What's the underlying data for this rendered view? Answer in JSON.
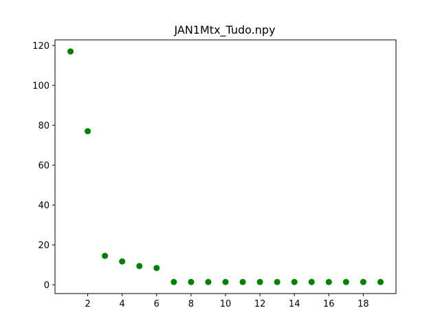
{
  "chart_data": {
    "type": "scatter",
    "title": "JAN1Mtx_Tudo.npy",
    "xlabel": "",
    "ylabel": "",
    "x": [
      1,
      2,
      3,
      4,
      5,
      6,
      7,
      8,
      9,
      10,
      11,
      12,
      13,
      14,
      15,
      16,
      17,
      18,
      19
    ],
    "y": [
      117,
      77,
      14.5,
      11.7,
      9.4,
      8.4,
      1.4,
      1.4,
      1.4,
      1.4,
      1.4,
      1.4,
      1.4,
      1.4,
      1.4,
      1.4,
      1.4,
      1.4,
      1.4
    ],
    "xlim": [
      0.1,
      19.9
    ],
    "ylim": [
      -4.4,
      122.8
    ],
    "xticks": [
      2,
      4,
      6,
      8,
      10,
      12,
      14,
      16,
      18
    ],
    "xtick_labels": [
      "2",
      "4",
      "6",
      "8",
      "10",
      "12",
      "14",
      "16",
      "18"
    ],
    "yticks": [
      0,
      20,
      40,
      60,
      80,
      100,
      120
    ],
    "ytick_labels": [
      "0",
      "20",
      "40",
      "60",
      "80",
      "100",
      "120"
    ],
    "marker_color": "#008000",
    "grid": false,
    "legend": false
  }
}
